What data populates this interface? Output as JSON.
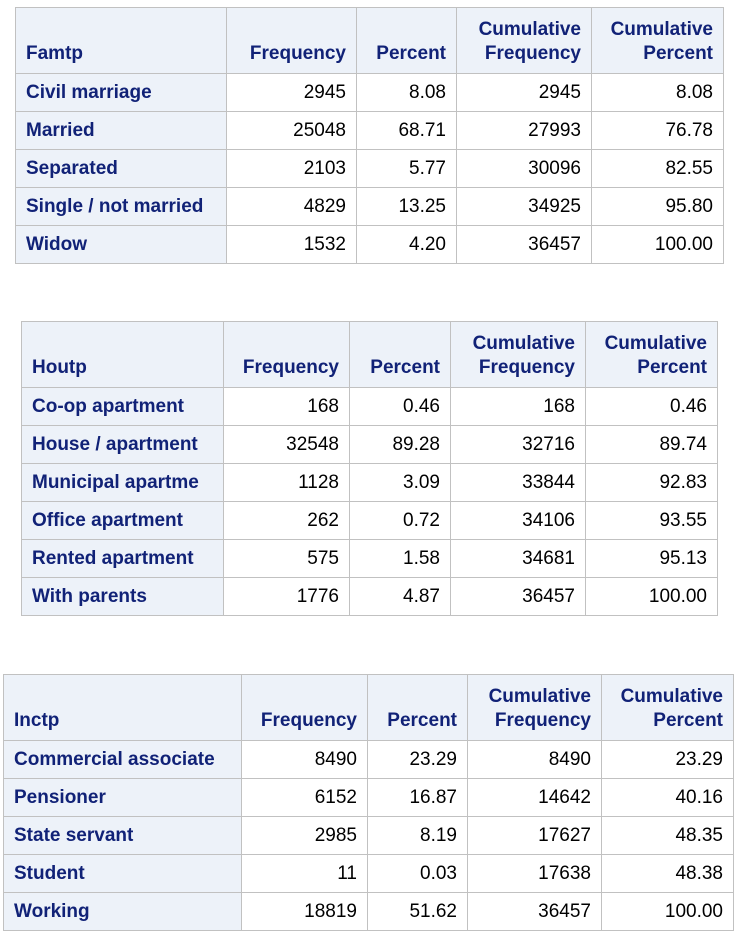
{
  "headers": {
    "frequency": "Frequency",
    "percent": "Percent",
    "cum_freq": [
      "Cumulative",
      "Frequency"
    ],
    "cum_pct": [
      "Cumulative",
      "Percent"
    ]
  },
  "tables": [
    {
      "variable": "Famtp",
      "rows": [
        {
          "label": "Civil marriage",
          "freq": "2945",
          "pct": "8.08",
          "cfreq": "2945",
          "cpct": "8.08"
        },
        {
          "label": "Married",
          "freq": "25048",
          "pct": "68.71",
          "cfreq": "27993",
          "cpct": "76.78"
        },
        {
          "label": "Separated",
          "freq": "2103",
          "pct": "5.77",
          "cfreq": "30096",
          "cpct": "82.55"
        },
        {
          "label": "Single / not married",
          "freq": "4829",
          "pct": "13.25",
          "cfreq": "34925",
          "cpct": "95.80"
        },
        {
          "label": "Widow",
          "freq": "1532",
          "pct": "4.20",
          "cfreq": "36457",
          "cpct": "100.00"
        }
      ]
    },
    {
      "variable": "Houtp",
      "rows": [
        {
          "label": "Co-op apartment",
          "freq": "168",
          "pct": "0.46",
          "cfreq": "168",
          "cpct": "0.46"
        },
        {
          "label": "House / apartment",
          "freq": "32548",
          "pct": "89.28",
          "cfreq": "32716",
          "cpct": "89.74"
        },
        {
          "label": "Municipal apartme",
          "freq": "1128",
          "pct": "3.09",
          "cfreq": "33844",
          "cpct": "92.83"
        },
        {
          "label": "Office apartment",
          "freq": "262",
          "pct": "0.72",
          "cfreq": "34106",
          "cpct": "93.55"
        },
        {
          "label": "Rented apartment",
          "freq": "575",
          "pct": "1.58",
          "cfreq": "34681",
          "cpct": "95.13"
        },
        {
          "label": "With parents",
          "freq": "1776",
          "pct": "4.87",
          "cfreq": "36457",
          "cpct": "100.00"
        }
      ]
    },
    {
      "variable": "Inctp",
      "rows": [
        {
          "label": "Commercial associate",
          "freq": "8490",
          "pct": "23.29",
          "cfreq": "8490",
          "cpct": "23.29"
        },
        {
          "label": "Pensioner",
          "freq": "6152",
          "pct": "16.87",
          "cfreq": "14642",
          "cpct": "40.16"
        },
        {
          "label": "State servant",
          "freq": "2985",
          "pct": "8.19",
          "cfreq": "17627",
          "cpct": "48.35"
        },
        {
          "label": "Student",
          "freq": "11",
          "pct": "0.03",
          "cfreq": "17638",
          "cpct": "48.38"
        },
        {
          "label": "Working",
          "freq": "18819",
          "pct": "51.62",
          "cfreq": "36457",
          "cpct": "100.00"
        }
      ]
    }
  ]
}
